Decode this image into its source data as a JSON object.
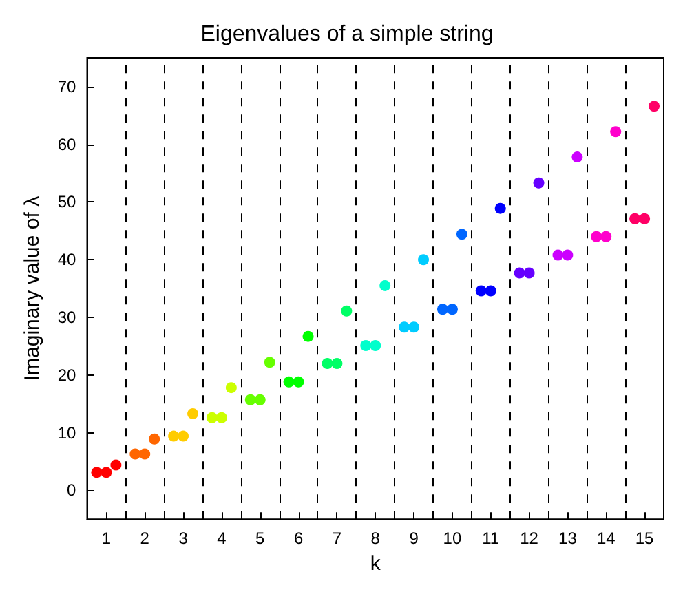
{
  "chart_data": {
    "type": "scatter",
    "title": "Eigenvalues of a simple string",
    "xlabel": "k",
    "ylabel": "Imaginary value of λ",
    "xlim": [
      0.5,
      15.5
    ],
    "xticks": [
      1,
      2,
      3,
      4,
      5,
      6,
      7,
      8,
      9,
      10,
      11,
      12,
      13,
      14,
      15
    ],
    "ylim": [
      -5,
      75
    ],
    "yticks": [
      0,
      10,
      20,
      30,
      40,
      50,
      60,
      70
    ],
    "grid": false,
    "marker": "circle",
    "series": [
      {
        "color": "#ff0000",
        "x": [
          0.75,
          1,
          1.25
        ],
        "values": [
          3.1,
          3.1,
          4.4
        ]
      },
      {
        "color": "#ff6600",
        "x": [
          1.75,
          2,
          2.25
        ],
        "values": [
          6.3,
          6.3,
          8.9
        ]
      },
      {
        "color": "#ffcc00",
        "x": [
          2.75,
          3,
          3.25
        ],
        "values": [
          9.4,
          9.4,
          13.3
        ]
      },
      {
        "color": "#ccff00",
        "x": [
          3.75,
          4,
          4.25
        ],
        "values": [
          12.6,
          12.6,
          17.8
        ]
      },
      {
        "color": "#66ff00",
        "x": [
          4.75,
          5,
          5.25
        ],
        "values": [
          15.7,
          15.7,
          22.2
        ]
      },
      {
        "color": "#00ff00",
        "x": [
          5.75,
          6,
          6.25
        ],
        "values": [
          18.8,
          18.8,
          26.7
        ]
      },
      {
        "color": "#00ff66",
        "x": [
          6.75,
          7,
          7.25
        ],
        "values": [
          22.0,
          22.0,
          31.1
        ]
      },
      {
        "color": "#00ffcc",
        "x": [
          7.75,
          8,
          8.25
        ],
        "values": [
          25.1,
          25.1,
          35.5
        ]
      },
      {
        "color": "#00ccff",
        "x": [
          8.75,
          9,
          9.25
        ],
        "values": [
          28.3,
          28.3,
          40.0
        ]
      },
      {
        "color": "#0066ff",
        "x": [
          9.75,
          10,
          10.25
        ],
        "values": [
          31.4,
          31.4,
          44.4
        ]
      },
      {
        "color": "#0000ff",
        "x": [
          10.75,
          11,
          11.25
        ],
        "values": [
          34.6,
          34.6,
          48.9
        ]
      },
      {
        "color": "#6600ff",
        "x": [
          11.75,
          12,
          12.25
        ],
        "values": [
          37.7,
          37.7,
          53.3
        ]
      },
      {
        "color": "#cc00ff",
        "x": [
          12.75,
          13,
          13.25
        ],
        "values": [
          40.8,
          40.8,
          57.8
        ]
      },
      {
        "color": "#ff00cc",
        "x": [
          13.75,
          14,
          14.25
        ],
        "values": [
          44.0,
          44.0,
          62.2
        ]
      },
      {
        "color": "#ff0066",
        "x": [
          14.75,
          15,
          15.25
        ],
        "values": [
          47.1,
          47.1,
          66.6
        ]
      }
    ],
    "ref_lines": [
      {
        "axis": "x",
        "value": 1.5,
        "color": "#000000",
        "line_style": "dashed"
      },
      {
        "axis": "x",
        "value": 2.5,
        "color": "#000000",
        "line_style": "dashed"
      },
      {
        "axis": "x",
        "value": 3.5,
        "color": "#000000",
        "line_style": "dashed"
      },
      {
        "axis": "x",
        "value": 4.5,
        "color": "#000000",
        "line_style": "dashed"
      },
      {
        "axis": "x",
        "value": 5.5,
        "color": "#000000",
        "line_style": "dashed"
      },
      {
        "axis": "x",
        "value": 6.5,
        "color": "#000000",
        "line_style": "dashed"
      },
      {
        "axis": "x",
        "value": 7.5,
        "color": "#000000",
        "line_style": "dashed"
      },
      {
        "axis": "x",
        "value": 8.5,
        "color": "#000000",
        "line_style": "dashed"
      },
      {
        "axis": "x",
        "value": 9.5,
        "color": "#000000",
        "line_style": "dashed"
      },
      {
        "axis": "x",
        "value": 10.5,
        "color": "#000000",
        "line_style": "dashed"
      },
      {
        "axis": "x",
        "value": 11.5,
        "color": "#000000",
        "line_style": "dashed"
      },
      {
        "axis": "x",
        "value": 12.5,
        "color": "#000000",
        "line_style": "dashed"
      },
      {
        "axis": "x",
        "value": 13.5,
        "color": "#000000",
        "line_style": "dashed"
      },
      {
        "axis": "x",
        "value": 14.5,
        "color": "#000000",
        "line_style": "dashed"
      }
    ]
  }
}
